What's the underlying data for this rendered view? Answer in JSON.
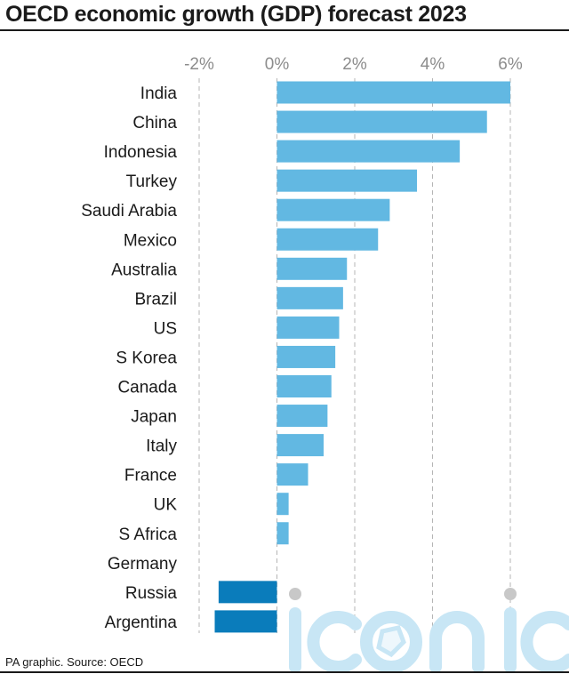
{
  "header": {
    "title": "OECD economic growth (GDP) forecast 2023"
  },
  "footer": {
    "source": "PA graphic. Source: OECD"
  },
  "colors": {
    "positive_bar": "#62b8e2",
    "negative_bar": "#0a7cbb",
    "gridline": "#b5b5b5",
    "tick_text": "#8c8c8c",
    "watermark": "#c8e6f5"
  },
  "chart_data": {
    "type": "bar",
    "orientation": "horizontal",
    "title": "OECD economic growth (GDP) forecast 2023",
    "xlabel": "",
    "ylabel": "",
    "xlim": [
      -2,
      6
    ],
    "xticks": [
      -2,
      0,
      2,
      4,
      6
    ],
    "tick_labels": [
      "-2%",
      "0%",
      "2%",
      "4%",
      "6%"
    ],
    "grid": true,
    "categories": [
      "India",
      "China",
      "Indonesia",
      "Turkey",
      "Saudi Arabia",
      "Mexico",
      "Australia",
      "Brazil",
      "US",
      "S Korea",
      "Canada",
      "Japan",
      "Italy",
      "France",
      "UK",
      "S Africa",
      "Germany",
      "Russia",
      "Argentina"
    ],
    "values": [
      6.0,
      5.4,
      4.7,
      3.6,
      2.9,
      2.6,
      1.8,
      1.7,
      1.6,
      1.5,
      1.4,
      1.3,
      1.2,
      0.8,
      0.3,
      0.3,
      0.0,
      -1.5,
      -1.6
    ]
  }
}
